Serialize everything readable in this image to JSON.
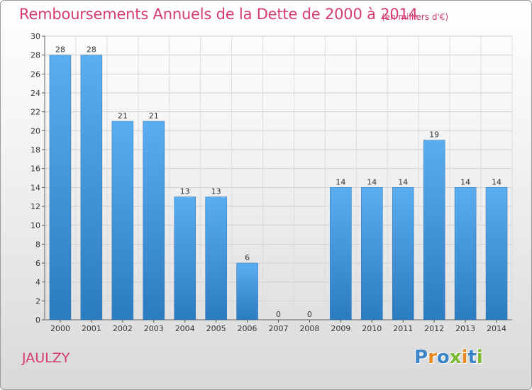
{
  "chart_data": {
    "type": "bar",
    "title": "Remboursements Annuels de la Dette de 2000 à 2014",
    "unit_note": "(en milliers d'€)",
    "categories": [
      "2000",
      "2001",
      "2002",
      "2003",
      "2004",
      "2005",
      "2006",
      "2007",
      "2008",
      "2009",
      "2010",
      "2011",
      "2012",
      "2013",
      "2014"
    ],
    "values": [
      28,
      28,
      21,
      21,
      13,
      13,
      6,
      0,
      0,
      14,
      14,
      14,
      19,
      14,
      14
    ],
    "ylim": [
      0,
      30
    ],
    "yticks": [
      0,
      2,
      4,
      6,
      8,
      10,
      12,
      14,
      16,
      18,
      20,
      22,
      24,
      26,
      28,
      30
    ],
    "grid": true,
    "bar_color": "#3d8fd6"
  },
  "footer": {
    "commune": "JAULZY",
    "logo_letters": [
      {
        "char": "P",
        "color": "#3a84c8"
      },
      {
        "char": "r",
        "color": "#e88a1e"
      },
      {
        "char": "o",
        "color": "#3a84c8"
      },
      {
        "char": "x",
        "color": "#7ab830"
      },
      {
        "char": "i",
        "color": "#e88a1e"
      },
      {
        "char": "t",
        "color": "#3a84c8"
      },
      {
        "char": "i",
        "color": "#7ab830"
      }
    ]
  }
}
